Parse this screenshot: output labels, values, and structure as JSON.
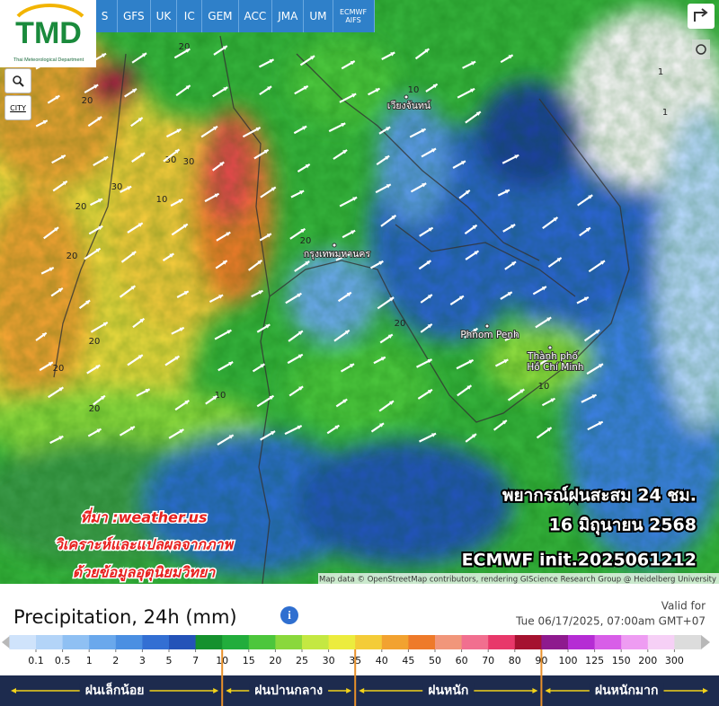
{
  "header": {
    "model_tabs": [
      "S",
      "GFS",
      "UK",
      "IC",
      "GEM",
      "ACC",
      "JMA",
      "UM",
      "ECMWF AIFS"
    ]
  },
  "logo": {
    "title": "TMD",
    "subtitle": "Thai Meteorological Department"
  },
  "controls": {
    "city": "CITY"
  },
  "map": {
    "places": [
      "กรุงเทพมหานคร",
      "เวียงจันทน์",
      "Phnom Penh",
      "Thành phố",
      "Hồ Chí Minh"
    ],
    "contour_labels": [
      "20",
      "20",
      "30",
      "30",
      "20",
      "20",
      "30",
      "10",
      "20",
      "20",
      "20",
      "10",
      "20",
      "20",
      "10",
      "10",
      "1",
      "1"
    ],
    "forecast": [
      "พยากรณ์ฝนสะสม 24 ชม.",
      "16 มิถุนายน 2568",
      "ECMWF init.2025061212"
    ],
    "source": [
      "ที่มา :weather.us",
      "วิเคราะห์และแปลผลจากภาพ",
      "ด้วยข้อมูลอุตุนิยมวิทยา"
    ],
    "attribution": "Map data © OpenStreetMap contributors, rendering GIScience Research Group @ Heidelberg University"
  },
  "legend": {
    "title": "Precipitation, 24h (mm)",
    "valid_label": "Valid for",
    "valid_time": "Tue 06/17/2025, 07:00am GMT+07",
    "ticks": [
      0.1,
      0.5,
      1,
      2,
      3,
      5,
      7,
      10,
      15,
      20,
      25,
      30,
      35,
      40,
      45,
      50,
      60,
      70,
      80,
      90,
      100,
      125,
      150,
      200,
      300
    ],
    "colors": [
      "#cfe3fb",
      "#b3d4f8",
      "#8fc0f3",
      "#6aa8ec",
      "#4b8fe2",
      "#336fd3",
      "#2453b8",
      "#1b3f9c",
      "#15912e",
      "#22ad3c",
      "#4cc63c",
      "#8ad83c",
      "#c4e842",
      "#ecec3e",
      "#f4cc38",
      "#f2a230",
      "#ee7a2a",
      "#f1967a",
      "#f16f8f",
      "#e8386a",
      "#cc1c3c",
      "#a51230",
      "#8e1a8e",
      "#b52cd4",
      "#d85ee8",
      "#ee9cf2",
      "#f6d0f6",
      "#dcdcdc"
    ],
    "categories": [
      {
        "label": "ฝนเล็กน้อย",
        "upto": 10
      },
      {
        "label": "ฝนปานกลาง",
        "upto": 35
      },
      {
        "label": "ฝนหนัก",
        "upto": 90
      },
      {
        "label": "ฝนหนักมาก"
      }
    ]
  }
}
